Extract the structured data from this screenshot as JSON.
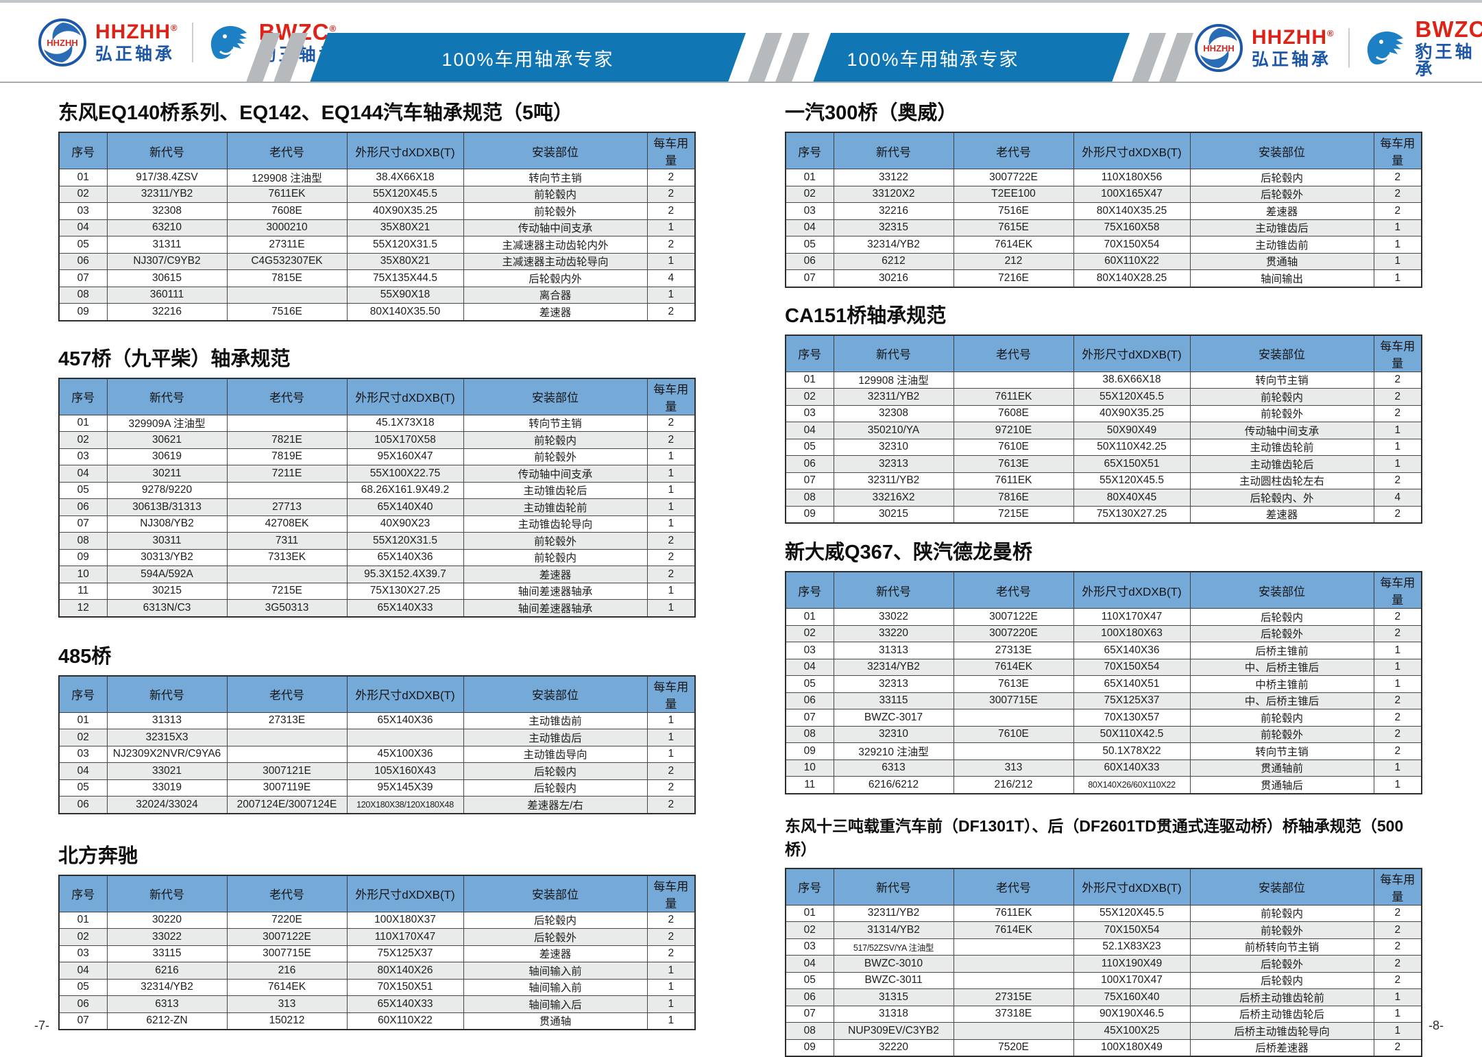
{
  "header": {
    "banner_text": "100%车用轴承专家",
    "brands": {
      "hhzhh": {
        "en": "HHZHH",
        "reg": "®",
        "cn": "弘正轴承",
        "logo_text": "HHZHH"
      },
      "bwzc": {
        "en": "BWZC",
        "reg": "®",
        "cn": "豹王轴承"
      }
    }
  },
  "colors": {
    "banner_blue": "#1176b4",
    "table_header_blue": "#74a9d8",
    "row_alt_gray": "#e9eaea",
    "brand_red": "#dd2318",
    "brand_blue": "#1c57a8"
  },
  "columns": [
    "序号",
    "新代号",
    "老代号",
    "外形尺寸dXDXB(T)",
    "安装部位",
    "每车用量"
  ],
  "pages": [
    {
      "number": "-7-",
      "sections": [
        {
          "title": "东风EQ140桥系列、EQ142、EQ144汽车轴承规范（5吨）",
          "rows": [
            [
              "01",
              "917/38.4ZSV",
              "129908 注油型",
              "38.4X66X18",
              "转向节主销",
              "2"
            ],
            [
              "02",
              "32311/YB2",
              "7611EK",
              "55X120X45.5",
              "前轮毂内",
              "2"
            ],
            [
              "03",
              "32308",
              "7608E",
              "40X90X35.25",
              "前轮毂外",
              "2"
            ],
            [
              "04",
              "63210",
              "3000210",
              "35X80X21",
              "传动轴中间支承",
              "1"
            ],
            [
              "05",
              "31311",
              "27311E",
              "55X120X31.5",
              "主减速器主动齿轮内外",
              "2"
            ],
            [
              "06",
              "NJ307/C9YB2",
              "C4G532307EK",
              "35X80X21",
              "主减速器主动齿轮导向",
              "1"
            ],
            [
              "07",
              "30615",
              "7815E",
              "75X135X44.5",
              "后轮毂内外",
              "4"
            ],
            [
              "08",
              "360111",
              "",
              "55X90X18",
              "离合器",
              "1"
            ],
            [
              "09",
              "32216",
              "7516E",
              "80X140X35.50",
              "差速器",
              "2"
            ]
          ]
        },
        {
          "title": "457桥（九平柴）轴承规范",
          "rows": [
            [
              "01",
              "329909A 注油型",
              "",
              "45.1X73X18",
              "转向节主销",
              "2"
            ],
            [
              "02",
              "30621",
              "7821E",
              "105X170X58",
              "前轮毂内",
              "2"
            ],
            [
              "03",
              "30619",
              "7819E",
              "95X160X47",
              "前轮毂外",
              "1"
            ],
            [
              "04",
              "30211",
              "7211E",
              "55X100X22.75",
              "传动轴中间支承",
              "1"
            ],
            [
              "05",
              "9278/9220",
              "",
              "68.26X161.9X49.2",
              "主动锥齿轮后",
              "1"
            ],
            [
              "06",
              "30613B/31313",
              "27713",
              "65X140X40",
              "主动锥齿轮前",
              "1"
            ],
            [
              "07",
              "NJ308/YB2",
              "42708EK",
              "40X90X23",
              "主动锥齿轮导向",
              "1"
            ],
            [
              "08",
              "30311",
              "7311",
              "55X120X31.5",
              "前轮毂外",
              "2"
            ],
            [
              "09",
              "30313/YB2",
              "7313EK",
              "65X140X36",
              "前轮毂内",
              "2"
            ],
            [
              "10",
              "594A/592A",
              "",
              "95.3X152.4X39.7",
              "差速器",
              "2"
            ],
            [
              "11",
              "30215",
              "7215E",
              "75X130X27.25",
              "轴间差速器轴承",
              "1"
            ],
            [
              "12",
              "6313N/C3",
              "3G50313",
              "65X140X33",
              "轴间差速器轴承",
              "1"
            ]
          ]
        },
        {
          "title": "485桥",
          "rows": [
            [
              "01",
              "31313",
              "27313E",
              "65X140X36",
              "主动锥齿前",
              "1"
            ],
            [
              "02",
              "32315X3",
              "",
              "",
              "主动锥齿后",
              "1"
            ],
            [
              "03",
              "NJ2309X2NVR/C9YA6",
              "",
              "45X100X36",
              "主动锥齿导向",
              "1"
            ],
            [
              "04",
              "33021",
              "3007121E",
              "105X160X43",
              "后轮毂内",
              "2"
            ],
            [
              "05",
              "33019",
              "3007119E",
              "95X145X39",
              "后轮毂内",
              "2"
            ],
            [
              "06",
              "32024/33024",
              "2007124E/3007124E",
              "120X180X38/120X180X48",
              "差速器左/右",
              "2"
            ]
          ]
        },
        {
          "title": "北方奔驰",
          "rows": [
            [
              "01",
              "30220",
              "7220E",
              "100X180X37",
              "后轮毂内",
              "2"
            ],
            [
              "02",
              "33022",
              "3007122E",
              "110X170X47",
              "后轮毂外",
              "2"
            ],
            [
              "03",
              "33115",
              "3007715E",
              "75X125X37",
              "差速器",
              "2"
            ],
            [
              "04",
              "6216",
              "216",
              "80X140X26",
              "轴间输入前",
              "1"
            ],
            [
              "05",
              "32314/YB2",
              "7614EK",
              "70X150X51",
              "轴间输入前",
              "1"
            ],
            [
              "06",
              "6313",
              "313",
              "65X140X33",
              "轴间输入后",
              "1"
            ],
            [
              "07",
              "6212-ZN",
              "150212",
              "60X110X22",
              "贯通轴",
              "1"
            ]
          ]
        }
      ]
    },
    {
      "number": "-8-",
      "sections": [
        {
          "title": "一汽300桥（奥威）",
          "rows": [
            [
              "01",
              "33122",
              "3007722E",
              "110X180X56",
              "后轮毂内",
              "2"
            ],
            [
              "02",
              "33120X2",
              "T2EE100",
              "100X165X47",
              "后轮毂外",
              "2"
            ],
            [
              "03",
              "32216",
              "7516E",
              "80X140X35.25",
              "差速器",
              "2"
            ],
            [
              "04",
              "32315",
              "7615E",
              "75X160X58",
              "主动锥齿后",
              "1"
            ],
            [
              "05",
              "32314/YB2",
              "7614EK",
              "70X150X54",
              "主动锥齿前",
              "1"
            ],
            [
              "06",
              "6212",
              "212",
              "60X110X22",
              "贯通轴",
              "1"
            ],
            [
              "07",
              "30216",
              "7216E",
              "80X140X28.25",
              "轴间输出",
              "1"
            ]
          ]
        },
        {
          "title": "CA151桥轴承规范",
          "rows": [
            [
              "01",
              "129908 注油型",
              "",
              "38.6X66X18",
              "转向节主销",
              "2"
            ],
            [
              "02",
              "32311/YB2",
              "7611EK",
              "55X120X45.5",
              "前轮毂内",
              "2"
            ],
            [
              "03",
              "32308",
              "7608E",
              "40X90X35.25",
              "前轮毂外",
              "2"
            ],
            [
              "04",
              "350210/YA",
              "97210E",
              "50X90X49",
              "传动轴中间支承",
              "1"
            ],
            [
              "05",
              "32310",
              "7610E",
              "50X110X42.25",
              "主动锥齿轮前",
              "1"
            ],
            [
              "06",
              "32313",
              "7613E",
              "65X150X51",
              "主动锥齿轮后",
              "1"
            ],
            [
              "07",
              "32311/YB2",
              "7611EK",
              "55X120X45.5",
              "主动圆柱齿轮左右",
              "2"
            ],
            [
              "08",
              "33216X2",
              "7816E",
              "80X40X45",
              "后轮毂内、外",
              "4"
            ],
            [
              "09",
              "30215",
              "7215E",
              "75X130X27.25",
              "差速器",
              "2"
            ]
          ]
        },
        {
          "title": "新大威Q367、陕汽德龙曼桥",
          "rows": [
            [
              "01",
              "33022",
              "3007122E",
              "110X170X47",
              "后轮毂内",
              "2"
            ],
            [
              "02",
              "33220",
              "3007220E",
              "100X180X63",
              "后轮毂外",
              "2"
            ],
            [
              "03",
              "31313",
              "27313E",
              "65X140X36",
              "后桥主锥前",
              "1"
            ],
            [
              "04",
              "32314/YB2",
              "7614EK",
              "70X150X54",
              "中、后桥主锥后",
              "1"
            ],
            [
              "05",
              "32313",
              "7613E",
              "65X140X51",
              "中桥主锥前",
              "1"
            ],
            [
              "06",
              "33115",
              "3007715E",
              "75X125X37",
              "中、后桥主锥后",
              "2"
            ],
            [
              "07",
              "BWZC-3017",
              "",
              "70X130X57",
              "前轮毂内",
              "2"
            ],
            [
              "08",
              "32310",
              "7610E",
              "50X110X42.5",
              "前轮毂外",
              "2"
            ],
            [
              "09",
              "329210 注油型",
              "",
              "50.1X78X22",
              "转向节主销",
              "2"
            ],
            [
              "10",
              "6313",
              "313",
              "60X140X33",
              "贯通轴前",
              "1"
            ],
            [
              "11",
              "6216/6212",
              "216/212",
              "80X140X26/60X110X22",
              "贯通轴后",
              "1"
            ]
          ]
        },
        {
          "title": "东风十三吨载重汽车前（DF1301T）、后（DF2601TD贯通式连驱动桥）桥轴承规范（500桥）",
          "rows": [
            [
              "01",
              "32311/YB2",
              "7611EK",
              "55X120X45.5",
              "前轮毂内",
              "2"
            ],
            [
              "02",
              "31314/YB2",
              "7614EK",
              "70X150X54",
              "前轮毂外",
              "2"
            ],
            [
              "03",
              "517/52ZSV/YA 注油型",
              "",
              "52.1X83X23",
              "前桥转向节主销",
              "2"
            ],
            [
              "04",
              "BWZC-3010",
              "",
              "110X190X49",
              "后轮毂外",
              "2"
            ],
            [
              "05",
              "BWZC-3011",
              "",
              "100X170X47",
              "后轮毂内",
              "2"
            ],
            [
              "06",
              "31315",
              "27315E",
              "75X160X40",
              "后桥主动锥齿轮前",
              "1"
            ],
            [
              "07",
              "31318",
              "37318E",
              "90X190X46.5",
              "后桥主动锥齿轮后",
              "1"
            ],
            [
              "08",
              "NUP309EV/C3YB2",
              "",
              "45X100X25",
              "后桥主动锥齿轮导向",
              "1"
            ],
            [
              "09",
              "32220",
              "7520E",
              "100X180X49",
              "后桥差速器",
              "2"
            ]
          ]
        }
      ]
    }
  ]
}
